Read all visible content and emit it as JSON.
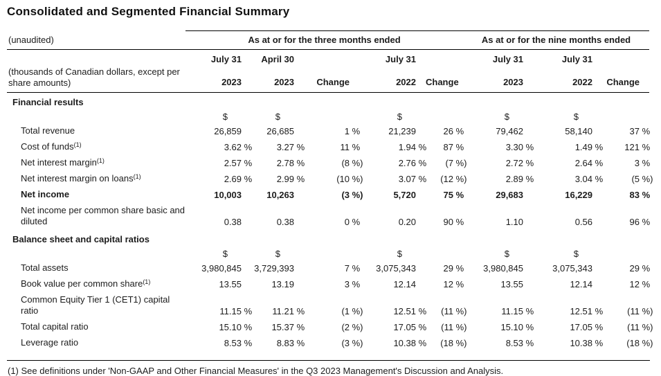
{
  "title": "Consolidated and Segmented Financial Summary",
  "table": {
    "unaudited_label": "(unaudited)",
    "span_headers": {
      "three_months": "As at or for the three months ended",
      "nine_months": "As at or for the nine months ended"
    },
    "month_headers": [
      "July 31",
      "April 30",
      "",
      "July 31",
      "",
      "July 31",
      "July 31",
      ""
    ],
    "left_note": "(thousands of Canadian dollars, except per share amounts)",
    "year_headers": [
      "2023",
      "2023",
      "Change",
      "2022",
      "Change",
      "2023",
      "2022",
      "Change"
    ],
    "rows": [
      {
        "type": "section",
        "label": "Financial results"
      },
      {
        "type": "currency",
        "values": [
          "$",
          "$",
          "",
          "$",
          "",
          "$",
          "$",
          ""
        ]
      },
      {
        "type": "data",
        "label": "Total revenue",
        "values": [
          "26,859",
          "26,685",
          "1 %",
          "21,239",
          "26 %",
          "79,462",
          "58,140",
          "37 %"
        ]
      },
      {
        "type": "data",
        "label": "Cost of funds",
        "sup": "(1)",
        "values": [
          "3.62 %",
          "3.27 %",
          "11 %",
          "1.94 %",
          "87 %",
          "3.30 %",
          "1.49 %",
          "121 %"
        ]
      },
      {
        "type": "data",
        "label": "Net interest margin",
        "sup": "(1)",
        "values": [
          "2.57 %",
          "2.78 %",
          "(8 %)",
          "2.76 %",
          "(7 %)",
          "2.72 %",
          "2.64 %",
          "3 %"
        ]
      },
      {
        "type": "data",
        "label": "Net interest margin on loans",
        "sup": "(1)",
        "values": [
          "2.69 %",
          "2.99 %",
          "(10 %)",
          "3.07 %",
          "(12 %)",
          "2.89 %",
          "3.04 %",
          "(5 %)"
        ]
      },
      {
        "type": "data",
        "bold": true,
        "label": "Net income",
        "values": [
          "10,003",
          "10,263",
          "(3 %)",
          "5,720",
          "75 %",
          "29,683",
          "16,229",
          "83 %"
        ]
      },
      {
        "type": "data",
        "label": "Net income per common share basic and diluted",
        "values": [
          "0.38",
          "0.38",
          "0 %",
          "0.20",
          "90 %",
          "1.10",
          "0.56",
          "96 %"
        ]
      },
      {
        "type": "section",
        "label": "Balance sheet and capital ratios"
      },
      {
        "type": "currency",
        "values": [
          "$",
          "$",
          "",
          "$",
          "",
          "$",
          "$",
          ""
        ]
      },
      {
        "type": "data",
        "label": "Total assets",
        "values": [
          "3,980,845",
          "3,729,393",
          "7 %",
          "3,075,343",
          "29 %",
          "3,980,845",
          "3,075,343",
          "29 %"
        ]
      },
      {
        "type": "data",
        "label": "Book value per common share",
        "sup": "(1)",
        "values": [
          "13.55",
          "13.19",
          "3 %",
          "12.14",
          "12 %",
          "13.55",
          "12.14",
          "12 %"
        ]
      },
      {
        "type": "data",
        "label": "Common Equity Tier 1 (CET1) capital ratio",
        "values": [
          "11.15 %",
          "11.21 %",
          "(1 %)",
          "12.51 %",
          "(11 %)",
          "11.15 %",
          "12.51 %",
          "(11 %)"
        ]
      },
      {
        "type": "data",
        "label": "Total capital ratio",
        "values": [
          "15.10 %",
          "15.37 %",
          "(2 %)",
          "17.05 %",
          "(11 %)",
          "15.10 %",
          "17.05 %",
          "(11 %)"
        ]
      },
      {
        "type": "data",
        "label": "Leverage ratio",
        "values": [
          "8.53 %",
          "8.83 %",
          "(3 %)",
          "10.38 %",
          "(18 %)",
          "8.53 %",
          "10.38 %",
          "(18 %)"
        ]
      }
    ]
  },
  "footnote": "(1) See definitions under 'Non-GAAP and Other Financial Measures' in the Q3 2023 Management's Discussion and Analysis."
}
